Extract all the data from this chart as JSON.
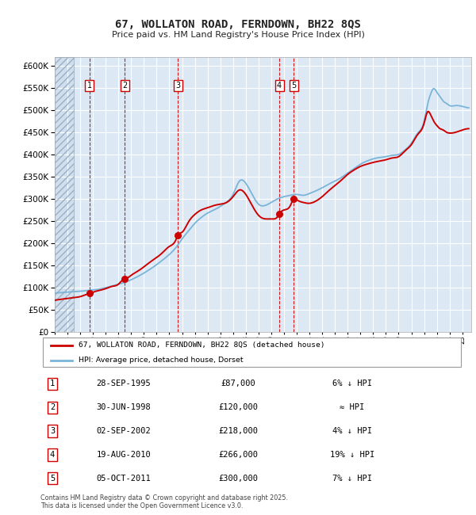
{
  "title": "67, WOLLATON ROAD, FERNDOWN, BH22 8QS",
  "subtitle": "Price paid vs. HM Land Registry's House Price Index (HPI)",
  "plot_bg_color": "#dce9f5",
  "hpi_line_color": "#7ab4d8",
  "price_line_color": "#cc0000",
  "dot_color": "#cc0000",
  "ylim": [
    0,
    620000
  ],
  "legend_line1": "67, WOLLATON ROAD, FERNDOWN, BH22 8QS (detached house)",
  "legend_line2": "HPI: Average price, detached house, Dorset",
  "transactions": [
    {
      "num": 1,
      "date": "28-SEP-1995",
      "price": 87000,
      "note": "6% ↓ HPI",
      "decimal_date": 1995.74
    },
    {
      "num": 2,
      "date": "30-JUN-1998",
      "price": 120000,
      "note": "≈ HPI",
      "decimal_date": 1998.49
    },
    {
      "num": 3,
      "date": "02-SEP-2002",
      "price": 218000,
      "note": "4% ↓ HPI",
      "decimal_date": 2002.67
    },
    {
      "num": 4,
      "date": "19-AUG-2010",
      "price": 266000,
      "note": "19% ↓ HPI",
      "decimal_date": 2010.63
    },
    {
      "num": 5,
      "date": "05-OCT-2011",
      "price": 300000,
      "note": "7% ↓ HPI",
      "decimal_date": 2011.76
    }
  ],
  "footer": "Contains HM Land Registry data © Crown copyright and database right 2025.\nThis data is licensed under the Open Government Licence v3.0.",
  "xmin": 1993.0,
  "xmax": 2025.7,
  "hpi_data": [
    [
      1993.0,
      88000
    ],
    [
      1993.5,
      89000
    ],
    [
      1994.0,
      90000
    ],
    [
      1994.5,
      91000
    ],
    [
      1995.0,
      92000
    ],
    [
      1995.5,
      93500
    ],
    [
      1996.0,
      95000
    ],
    [
      1996.5,
      97000
    ],
    [
      1997.0,
      100000
    ],
    [
      1997.5,
      104000
    ],
    [
      1998.0,
      108000
    ],
    [
      1998.5,
      112000
    ],
    [
      1999.0,
      118000
    ],
    [
      1999.5,
      125000
    ],
    [
      2000.0,
      133000
    ],
    [
      2000.5,
      142000
    ],
    [
      2001.0,
      152000
    ],
    [
      2001.5,
      163000
    ],
    [
      2002.0,
      175000
    ],
    [
      2002.5,
      190000
    ],
    [
      2003.0,
      210000
    ],
    [
      2003.5,
      228000
    ],
    [
      2004.0,
      245000
    ],
    [
      2004.5,
      258000
    ],
    [
      2005.0,
      268000
    ],
    [
      2005.5,
      275000
    ],
    [
      2006.0,
      283000
    ],
    [
      2006.5,
      293000
    ],
    [
      2007.0,
      310000
    ],
    [
      2007.5,
      340000
    ],
    [
      2008.0,
      335000
    ],
    [
      2008.5,
      310000
    ],
    [
      2009.0,
      288000
    ],
    [
      2009.5,
      285000
    ],
    [
      2010.0,
      292000
    ],
    [
      2010.5,
      300000
    ],
    [
      2011.0,
      305000
    ],
    [
      2011.5,
      308000
    ],
    [
      2012.0,
      310000
    ],
    [
      2012.5,
      308000
    ],
    [
      2013.0,
      312000
    ],
    [
      2013.5,
      318000
    ],
    [
      2014.0,
      325000
    ],
    [
      2014.5,
      333000
    ],
    [
      2015.0,
      340000
    ],
    [
      2015.5,
      348000
    ],
    [
      2016.0,
      358000
    ],
    [
      2016.5,
      368000
    ],
    [
      2017.0,
      378000
    ],
    [
      2017.5,
      385000
    ],
    [
      2018.0,
      390000
    ],
    [
      2018.5,
      393000
    ],
    [
      2019.0,
      395000
    ],
    [
      2019.5,
      398000
    ],
    [
      2020.0,
      400000
    ],
    [
      2020.5,
      410000
    ],
    [
      2021.0,
      425000
    ],
    [
      2021.5,
      448000
    ],
    [
      2022.0,
      475000
    ],
    [
      2022.25,
      510000
    ],
    [
      2022.5,
      535000
    ],
    [
      2022.75,
      548000
    ],
    [
      2023.0,
      540000
    ],
    [
      2023.25,
      530000
    ],
    [
      2023.5,
      520000
    ],
    [
      2023.75,
      515000
    ],
    [
      2024.0,
      510000
    ],
    [
      2024.5,
      510000
    ],
    [
      2025.0,
      508000
    ],
    [
      2025.5,
      505000
    ]
  ],
  "price_data": [
    [
      1993.0,
      72000
    ],
    [
      1993.5,
      74000
    ],
    [
      1994.0,
      76000
    ],
    [
      1994.5,
      78000
    ],
    [
      1995.0,
      80000
    ],
    [
      1995.5,
      85000
    ],
    [
      1995.74,
      87000
    ],
    [
      1996.0,
      90000
    ],
    [
      1996.5,
      94000
    ],
    [
      1997.0,
      98000
    ],
    [
      1997.5,
      103000
    ],
    [
      1998.0,
      108000
    ],
    [
      1998.49,
      120000
    ],
    [
      1998.5,
      120000
    ],
    [
      1999.0,
      128000
    ],
    [
      1999.5,
      137000
    ],
    [
      2000.0,
      147000
    ],
    [
      2000.5,
      158000
    ],
    [
      2001.0,
      168000
    ],
    [
      2001.5,
      180000
    ],
    [
      2002.0,
      193000
    ],
    [
      2002.5,
      207000
    ],
    [
      2002.67,
      218000
    ],
    [
      2003.0,
      225000
    ],
    [
      2003.5,
      248000
    ],
    [
      2004.0,
      265000
    ],
    [
      2004.5,
      275000
    ],
    [
      2005.0,
      280000
    ],
    [
      2005.5,
      285000
    ],
    [
      2006.0,
      288000
    ],
    [
      2006.5,
      292000
    ],
    [
      2007.0,
      305000
    ],
    [
      2007.5,
      320000
    ],
    [
      2008.0,
      310000
    ],
    [
      2008.5,
      285000
    ],
    [
      2009.0,
      263000
    ],
    [
      2009.5,
      255000
    ],
    [
      2010.0,
      255000
    ],
    [
      2010.5,
      260000
    ],
    [
      2010.63,
      266000
    ],
    [
      2011.0,
      275000
    ],
    [
      2011.5,
      285000
    ],
    [
      2011.76,
      300000
    ],
    [
      2012.0,
      298000
    ],
    [
      2012.5,
      292000
    ],
    [
      2013.0,
      290000
    ],
    [
      2013.5,
      295000
    ],
    [
      2014.0,
      305000
    ],
    [
      2014.5,
      318000
    ],
    [
      2015.0,
      330000
    ],
    [
      2015.5,
      342000
    ],
    [
      2016.0,
      355000
    ],
    [
      2016.5,
      365000
    ],
    [
      2017.0,
      373000
    ],
    [
      2017.5,
      378000
    ],
    [
      2018.0,
      382000
    ],
    [
      2018.5,
      385000
    ],
    [
      2019.0,
      388000
    ],
    [
      2019.5,
      392000
    ],
    [
      2020.0,
      395000
    ],
    [
      2020.5,
      408000
    ],
    [
      2021.0,
      422000
    ],
    [
      2021.5,
      445000
    ],
    [
      2022.0,
      470000
    ],
    [
      2022.25,
      495000
    ],
    [
      2022.5,
      490000
    ],
    [
      2022.75,
      475000
    ],
    [
      2023.0,
      465000
    ],
    [
      2023.25,
      458000
    ],
    [
      2023.5,
      455000
    ],
    [
      2023.75,
      450000
    ],
    [
      2024.0,
      448000
    ],
    [
      2024.5,
      450000
    ],
    [
      2025.0,
      455000
    ],
    [
      2025.5,
      458000
    ]
  ]
}
